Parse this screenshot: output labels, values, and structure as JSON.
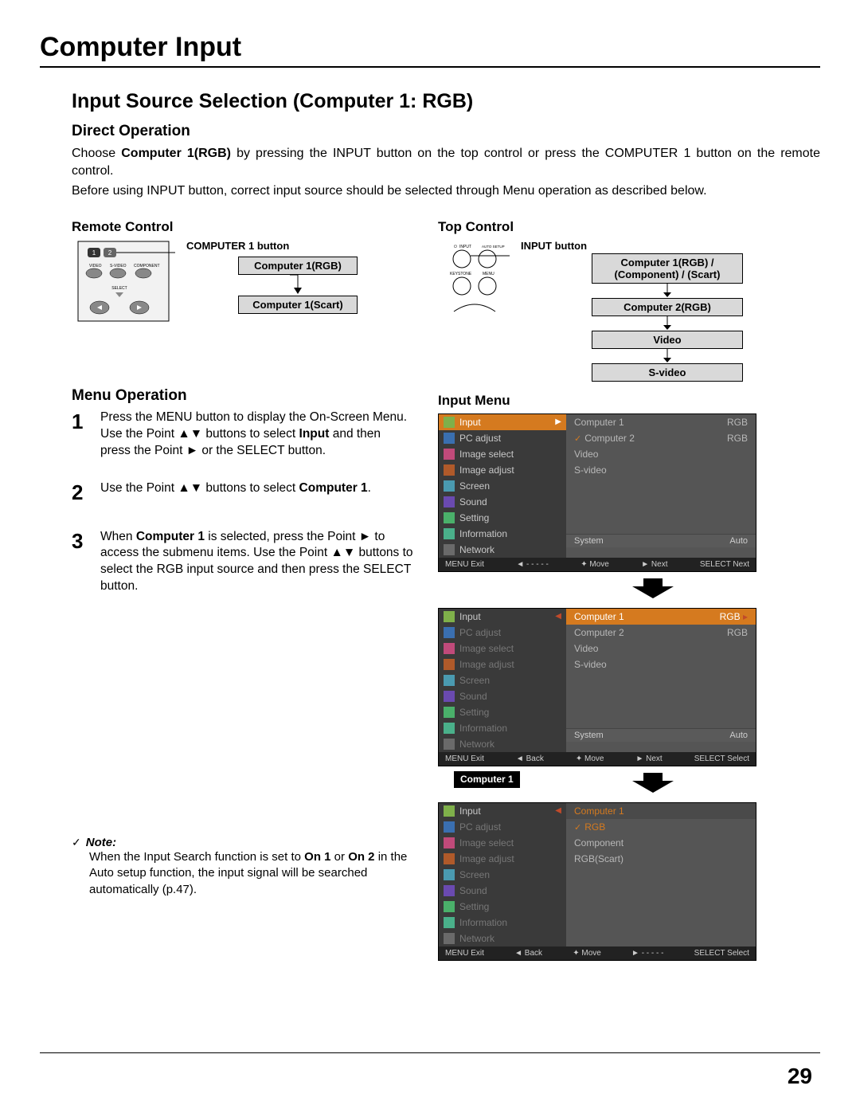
{
  "chapter_title": "Computer Input",
  "section_title": "Input Source Selection (Computer 1: RGB)",
  "direct_operation": {
    "heading": "Direct Operation",
    "para1_a": "Choose ",
    "para1_b": "Computer 1(RGB)",
    "para1_c": " by pressing the INPUT button on the top control or press the COMPUTER 1 button on the remote control.",
    "para2": "Before using INPUT button, correct input source should be selected through Menu operation as described below."
  },
  "remote_control": {
    "heading": "Remote Control",
    "callout": "COMPUTER 1 button",
    "box1": "Computer 1(RGB)",
    "box2": "Computer 1(Scart)",
    "labels": {
      "video": "VIDEO",
      "svideo": "S-VIDEO",
      "component": "COMPONENT",
      "select": "SELECT",
      "one": "1",
      "two": "2"
    }
  },
  "top_control": {
    "heading": "Top Control",
    "callout": "INPUT button",
    "labels": {
      "input": "INPUT",
      "autosetup": "AUTO SETUP",
      "keystone": "KEYSTONE",
      "menu": "MENU"
    },
    "box1": "Computer 1(RGB) / (Component) / (Scart)",
    "box2": "Computer 2(RGB)",
    "box3": "Video",
    "box4": "S-video"
  },
  "menu_operation": {
    "heading": "Menu Operation",
    "step1_a": "Press the MENU button to display the On-Screen Menu. Use the Point ▲▼ buttons to select ",
    "step1_b": "Input",
    "step1_c": " and then press the Point ► or the SELECT button.",
    "step2_a": "Use the Point ▲▼ buttons to select ",
    "step2_b": "Computer 1",
    "step2_c": ".",
    "step3_a": "When ",
    "step3_b": "Computer 1",
    "step3_c": " is selected, press the Point ► to access the submenu items. Use the Point ▲▼ buttons to select the RGB input source and then press the SELECT button.",
    "num1": "1",
    "num2": "2",
    "num3": "3"
  },
  "note": {
    "label": "Note:",
    "body_a": "When the Input Search function is set to ",
    "body_on1": "On 1",
    "body_or": " or ",
    "body_on2": "On 2",
    "body_b": " in the Auto setup function, the input signal will be searched automatically (p.47)."
  },
  "input_menu_heading": "Input Menu",
  "comp1_badge": "Computer 1",
  "menus": {
    "sidebar_items": [
      {
        "label": "Input",
        "cls": "ico-input"
      },
      {
        "label": "PC adjust",
        "cls": "ico-pc"
      },
      {
        "label": "Image select",
        "cls": "ico-imgsel"
      },
      {
        "label": "Image adjust",
        "cls": "ico-imgadj"
      },
      {
        "label": "Screen",
        "cls": "ico-scr"
      },
      {
        "label": "Sound",
        "cls": "ico-snd"
      },
      {
        "label": "Setting",
        "cls": "ico-set"
      },
      {
        "label": "Information",
        "cls": "ico-info"
      },
      {
        "label": "Network",
        "cls": "ico-net"
      }
    ],
    "shot1_list": [
      {
        "l": "Computer 1",
        "r": "RGB"
      },
      {
        "l": "Computer 2",
        "r": "RGB",
        "chk": true
      },
      {
        "l": "Video",
        "r": ""
      },
      {
        "l": "S-video",
        "r": ""
      }
    ],
    "shot1_sys": {
      "l": "System",
      "r": "Auto"
    },
    "shot1_bottom": [
      "MENU Exit",
      "◄ - - - - -",
      "✦ Move",
      "► Next",
      "SELECT Next"
    ],
    "shot2_list": [
      {
        "l": "Computer 1",
        "r": "RGB",
        "sel": true
      },
      {
        "l": "Computer 2",
        "r": "RGB"
      },
      {
        "l": "Video",
        "r": ""
      },
      {
        "l": "S-video",
        "r": ""
      }
    ],
    "shot2_sys": {
      "l": "System",
      "r": "Auto"
    },
    "shot2_bottom": [
      "MENU Exit",
      "◄ Back",
      "✦ Move",
      "► Next",
      "SELECT Select"
    ],
    "shot3_header": "Computer 1",
    "shot3_list": [
      {
        "l": "RGB",
        "chk": true,
        "hl": true
      },
      {
        "l": "Component"
      },
      {
        "l": "RGB(Scart)"
      }
    ],
    "shot3_bottom": [
      "MENU Exit",
      "◄ Back",
      "✦ Move",
      "► - - - - -",
      "SELECT Select"
    ]
  },
  "page_number": "29",
  "colors": {
    "orange_sel": "#d57a1f",
    "menu_bg": "#3a3a3a",
    "menu_list_bg": "#555555",
    "box_fill": "#d9d9d9"
  }
}
